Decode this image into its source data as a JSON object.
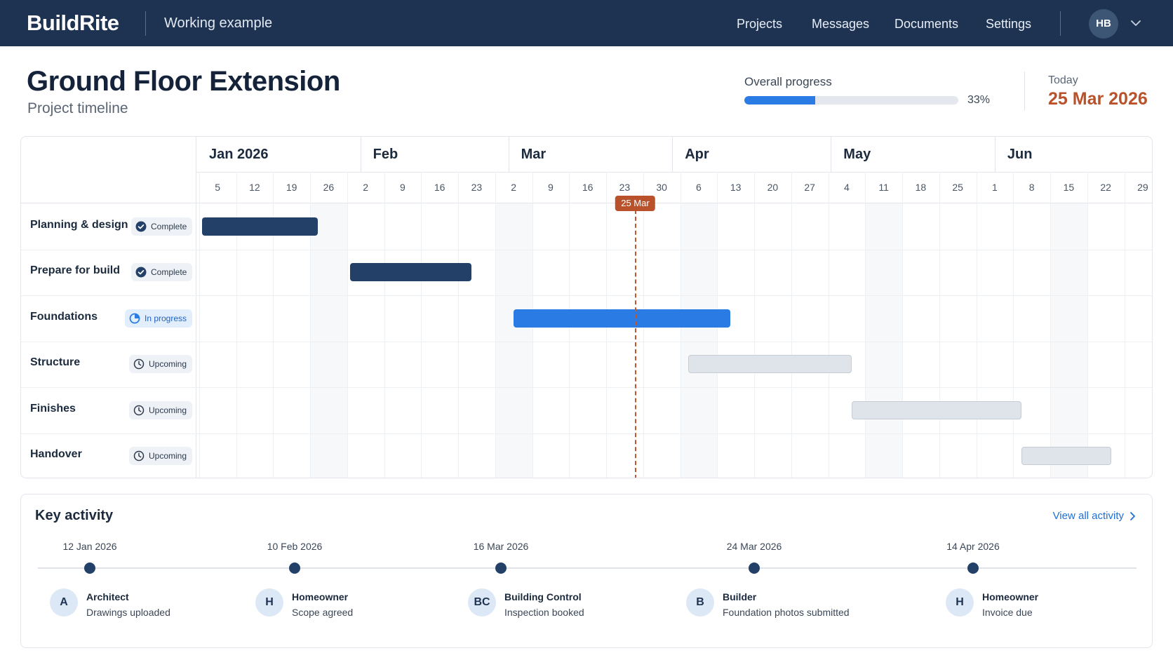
{
  "app": {
    "logo": "BuildRite",
    "subtitle": "Working example",
    "user_initials": "HB"
  },
  "nav": {
    "items": [
      "Projects",
      "Messages",
      "Documents",
      "Settings"
    ]
  },
  "header": {
    "title": "Ground Floor Extension",
    "subtitle": "Project timeline",
    "progress_label": "Overall progress",
    "progress_value": 33,
    "progress_text": "33%",
    "today_label": "Today",
    "today_value": "25 Mar 2026"
  },
  "timeline": {
    "months": [
      "Jan 2026",
      "Feb",
      "Mar",
      "Apr",
      "May",
      "Jun"
    ],
    "weeks": [
      "5",
      "12",
      "19",
      "26",
      "2",
      "9",
      "16",
      "23",
      "2",
      "9",
      "16",
      "23",
      "30",
      "6",
      "13",
      "20",
      "27",
      "4",
      "11",
      "18",
      "25",
      "1",
      "8",
      "15",
      "22",
      "29"
    ],
    "today_marker": "25 Mar",
    "tasks": [
      {
        "name": "Planning & design",
        "status": "Complete",
        "state": "complete",
        "start": "2026-01-02",
        "end": "2026-01-24"
      },
      {
        "name": "Prepare for build",
        "status": "Complete",
        "state": "complete",
        "start": "2026-01-30",
        "end": "2026-02-22"
      },
      {
        "name": "Foundations",
        "status": "In progress",
        "state": "inprogress",
        "start": "2026-03-02",
        "end": "2026-04-12"
      },
      {
        "name": "Structure",
        "status": "Upcoming",
        "state": "upcoming",
        "start": "2026-04-04",
        "end": "2026-05-05"
      },
      {
        "name": "Finishes",
        "status": "Upcoming",
        "state": "upcoming",
        "start": "2026-05-05",
        "end": "2026-06-06"
      },
      {
        "name": "Handover",
        "status": "Upcoming",
        "state": "upcoming",
        "start": "2026-06-06",
        "end": "2026-06-23"
      }
    ]
  },
  "activity": {
    "title": "Key activity",
    "view_all": "View all activity",
    "events": [
      {
        "date": "12 Jan 2026",
        "initials": "A",
        "role": "Architect",
        "desc": "Drawings uploaded"
      },
      {
        "date": "10 Feb 2026",
        "initials": "H",
        "role": "Homeowner",
        "desc": "Scope agreed"
      },
      {
        "date": "16 Mar 2026",
        "initials": "BC",
        "role": "Building Control",
        "desc": "Inspection booked"
      },
      {
        "date": "24 Mar 2026",
        "initials": "B",
        "role": "Builder",
        "desc": "Foundation photos submitted"
      },
      {
        "date": "14 Apr 2026",
        "initials": "H",
        "role": "Homeowner",
        "desc": "Invoice due"
      }
    ]
  },
  "colors": {
    "navy": "#1e3352",
    "accent": "#2a7be4",
    "today": "#b9522a"
  }
}
